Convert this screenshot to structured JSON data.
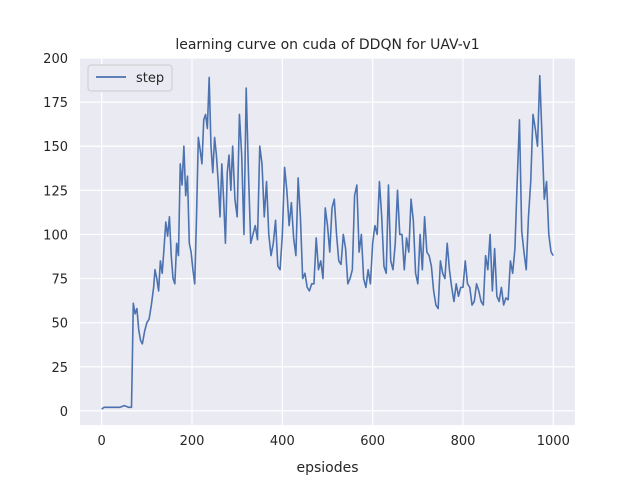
{
  "chart_data": {
    "type": "line",
    "title": "learning curve on cuda of DDQN for UAV-v1",
    "xlabel": "epsiodes",
    "ylabel": "",
    "xlim": [
      -48,
      1048
    ],
    "ylim": [
      -8,
      200
    ],
    "xticks": [
      0,
      200,
      400,
      600,
      800,
      1000
    ],
    "yticks": [
      0,
      25,
      50,
      75,
      100,
      125,
      150,
      175,
      200
    ],
    "grid": true,
    "legend_position": "top-left",
    "colors": {
      "background": "#eaeaf2",
      "grid": "#ffffff",
      "series": "#4c72b0"
    },
    "series": [
      {
        "name": "step",
        "x": [
          0,
          5,
          10,
          20,
          30,
          40,
          50,
          60,
          66,
          68,
          70,
          74,
          78,
          82,
          86,
          90,
          95,
          100,
          105,
          110,
          115,
          118,
          122,
          126,
          130,
          134,
          138,
          142,
          146,
          150,
          154,
          158,
          162,
          166,
          170,
          174,
          178,
          182,
          186,
          190,
          194,
          198,
          202,
          206,
          210,
          214,
          218,
          222,
          226,
          230,
          234,
          238,
          242,
          246,
          250,
          254,
          258,
          262,
          266,
          270,
          274,
          278,
          282,
          286,
          290,
          295,
          300,
          305,
          310,
          315,
          320,
          325,
          330,
          335,
          340,
          345,
          350,
          355,
          360,
          365,
          370,
          375,
          380,
          385,
          390,
          395,
          400,
          405,
          410,
          415,
          420,
          425,
          430,
          435,
          440,
          445,
          450,
          455,
          460,
          465,
          470,
          475,
          480,
          485,
          490,
          495,
          500,
          505,
          510,
          515,
          520,
          525,
          530,
          535,
          540,
          545,
          550,
          555,
          560,
          565,
          570,
          575,
          580,
          585,
          590,
          595,
          600,
          605,
          610,
          615,
          620,
          625,
          630,
          635,
          640,
          645,
          650,
          655,
          660,
          665,
          670,
          675,
          680,
          685,
          690,
          695,
          700,
          705,
          710,
          715,
          720,
          725,
          730,
          735,
          740,
          745,
          750,
          755,
          760,
          765,
          770,
          775,
          780,
          785,
          790,
          795,
          800,
          805,
          810,
          815,
          820,
          825,
          830,
          835,
          840,
          845,
          850,
          855,
          860,
          865,
          870,
          875,
          880,
          885,
          890,
          895,
          900,
          905,
          910,
          915,
          920,
          925,
          930,
          935,
          940,
          945,
          950,
          955,
          960,
          965,
          970,
          975,
          980,
          985,
          990,
          995,
          1000
        ],
        "y": [
          1,
          2,
          2,
          2,
          2,
          2,
          3,
          2,
          2,
          30,
          61,
          55,
          58,
          46,
          40,
          38,
          45,
          50,
          52,
          60,
          70,
          80,
          75,
          68,
          85,
          78,
          92,
          107,
          99,
          110,
          88,
          75,
          72,
          95,
          88,
          140,
          128,
          150,
          122,
          133,
          95,
          90,
          80,
          72,
          110,
          155,
          148,
          140,
          165,
          168,
          160,
          189,
          150,
          135,
          155,
          145,
          130,
          110,
          140,
          120,
          95,
          135,
          145,
          125,
          150,
          120,
          110,
          168,
          145,
          100,
          183,
          135,
          95,
          100,
          105,
          97,
          150,
          140,
          110,
          130,
          100,
          88,
          95,
          108,
          82,
          80,
          100,
          138,
          125,
          105,
          118,
          98,
          88,
          132,
          110,
          75,
          78,
          70,
          68,
          72,
          72,
          98,
          80,
          85,
          75,
          115,
          105,
          90,
          115,
          120,
          100,
          85,
          83,
          100,
          92,
          72,
          75,
          80,
          122,
          128,
          90,
          100,
          75,
          70,
          80,
          72,
          95,
          105,
          100,
          130,
          110,
          82,
          78,
          128,
          85,
          80,
          95,
          125,
          100,
          100,
          80,
          98,
          90,
          120,
          108,
          78,
          72,
          100,
          80,
          110,
          90,
          88,
          82,
          68,
          60,
          58,
          85,
          78,
          75,
          95,
          80,
          70,
          62,
          72,
          65,
          70,
          70,
          85,
          72,
          70,
          60,
          62,
          72,
          68,
          62,
          60,
          88,
          80,
          100,
          68,
          92,
          65,
          62,
          70,
          60,
          64,
          63,
          85,
          78,
          92,
          130,
          165,
          102,
          90,
          80,
          110,
          130,
          168,
          160,
          150,
          190,
          155,
          120,
          130,
          100,
          90,
          88
        ]
      }
    ]
  }
}
